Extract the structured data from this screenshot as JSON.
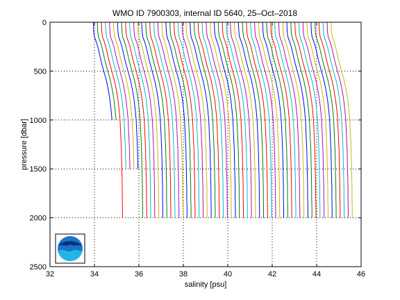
{
  "chart_data": {
    "type": "line",
    "title": "WMO ID 7900303, internal ID 5640, 25–Oct–2018",
    "xlabel": "salinity [psu]",
    "ylabel": "pressure [dbar]",
    "xlim": [
      32,
      46
    ],
    "ylim": [
      2500,
      0
    ],
    "y_reversed": true,
    "xticks": [
      32,
      34,
      36,
      38,
      40,
      42,
      44,
      46
    ],
    "yticks": [
      0,
      500,
      1000,
      1500,
      2000,
      2500
    ],
    "grid": true,
    "colors": [
      "#0000ff",
      "#008000",
      "#ff0000",
      "#00bfbf",
      "#bf00bf",
      "#bfbf00"
    ],
    "logo": "noaa-logo",
    "series_generation": {
      "count": 60,
      "first_bottom_salinity": 34.9,
      "last_bottom_salinity": 45.6,
      "pressure_levels": [
        0,
        50,
        100,
        150,
        200,
        250,
        300,
        400,
        500,
        600,
        700,
        800,
        900,
        1000,
        1100,
        1200,
        1300,
        1400,
        1500,
        1600,
        1700,
        1800,
        1900,
        2000
      ],
      "salinity_offsets": [
        -0.95,
        -0.94,
        -0.93,
        -0.9,
        -0.82,
        -0.75,
        -0.7,
        -0.6,
        -0.48,
        -0.36,
        -0.27,
        -0.2,
        -0.15,
        -0.11,
        -0.09,
        -0.07,
        -0.05,
        -0.04,
        -0.03,
        -0.02,
        -0.01,
        -0.01,
        0,
        0
      ],
      "short_profiles": [
        [
          0,
          1000
        ],
        [
          1,
          1000
        ],
        [
          3,
          1500
        ],
        [
          4,
          1500
        ],
        [
          5,
          1500
        ],
        [
          6,
          1500
        ]
      ]
    }
  }
}
